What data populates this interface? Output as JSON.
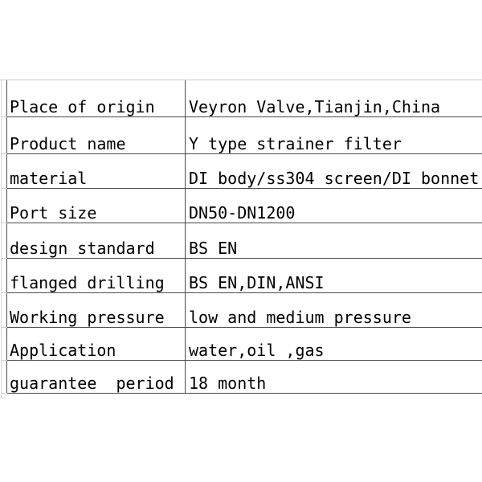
{
  "table": {
    "description": "Product specification table",
    "rows": [
      {
        "label": "Place of origin",
        "value": "Veyron Valve,Tianjin,China"
      },
      {
        "label": "Product name",
        "value": "Y type strainer filter"
      },
      {
        "label": "material",
        "value": "DI body/ss304 screen/DI bonnet"
      },
      {
        "label": "Port size",
        "value": "DN50-DN1200"
      },
      {
        "label": "design standard",
        "value": "BS EN"
      },
      {
        "label": "flanged drilling",
        "value": "BS EN,DIN,ANSI"
      },
      {
        "label": "Working pressure",
        "value": "low and medium pressure"
      },
      {
        "label": "Application",
        "value": "water,oil ,gas"
      },
      {
        "label": "guarantee  period",
        "value": "18 month"
      }
    ],
    "colors": {
      "background": "#ffffff",
      "text": "#000000",
      "cell_border": "#4a4a4a",
      "gridline": "#c9c9c9"
    }
  }
}
